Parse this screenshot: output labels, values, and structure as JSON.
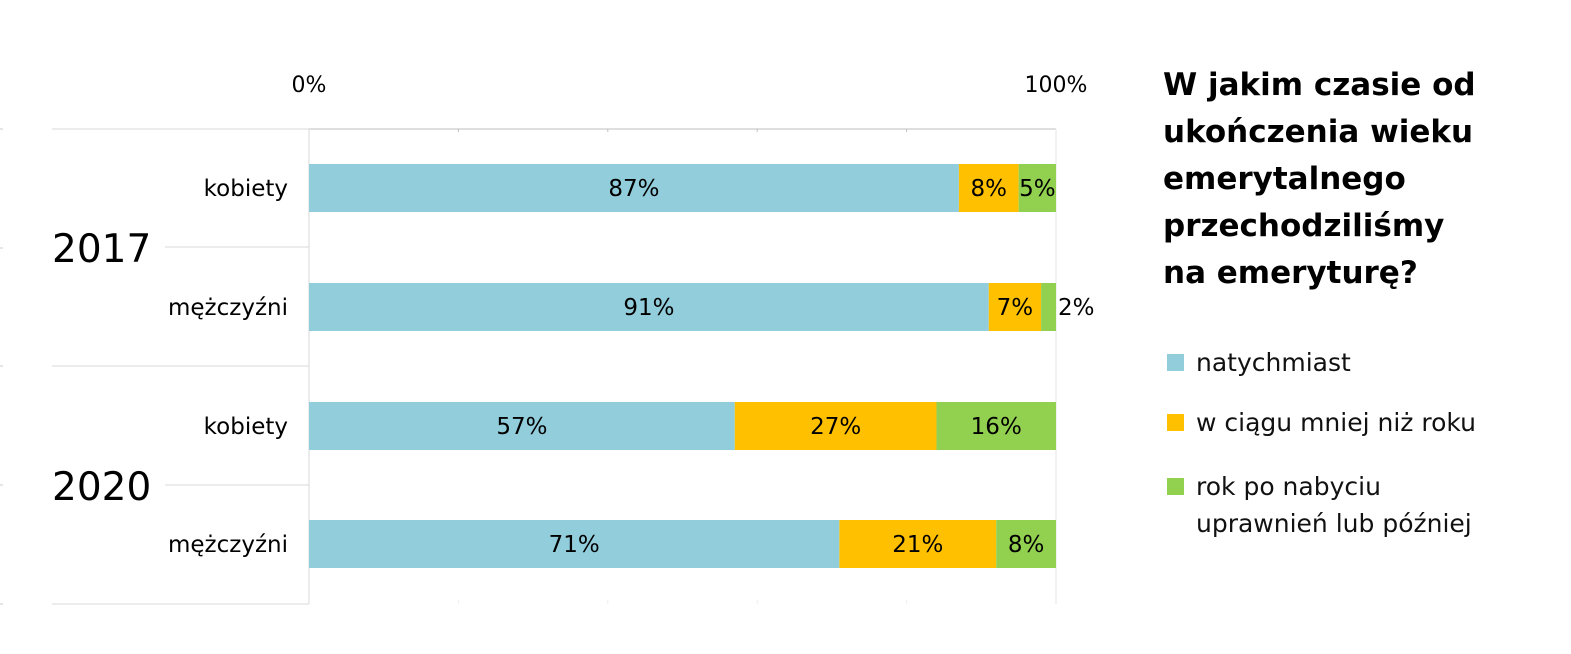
{
  "chart_data": {
    "type": "bar",
    "orientation": "horizontal",
    "stacked": true,
    "title_lines": [
      "W jakim czasie od",
      "ukończenia wieku",
      "emerytalnego",
      "przechodziliśmy",
      "na emeryturę?"
    ],
    "x_axis": {
      "range": [
        0,
        100
      ],
      "tick_labels": [
        "0%",
        "100%"
      ],
      "position": "top"
    },
    "groups": [
      {
        "label": "2017",
        "rows": [
          "kobiety",
          "mężczyźni"
        ]
      },
      {
        "label": "2020",
        "rows": [
          "kobiety",
          "mężczyźni"
        ]
      }
    ],
    "categories": [
      "2017 kobiety",
      "2017 mężczyźni",
      "2020 kobiety",
      "2020 mężczyźni"
    ],
    "row_labels": [
      "kobiety",
      "mężczyźni",
      "kobiety",
      "mężczyźni"
    ],
    "series": [
      {
        "name": "natychmiast",
        "color": "#92CDDC",
        "values": [
          87,
          91,
          57,
          71
        ],
        "labels": [
          "87%",
          "91%",
          "57%",
          "71%"
        ]
      },
      {
        "name": "w ciągu mniej niż roku",
        "color": "#FFC000",
        "values": [
          8,
          7,
          27,
          21
        ],
        "labels": [
          "8%",
          "7%",
          "27%",
          "21%"
        ]
      },
      {
        "name": "rok po nabyciu uprawnień lub później",
        "name_lines": [
          "rok po nabyciu",
          "uprawnień lub później"
        ],
        "color": "#92D050",
        "values": [
          5,
          2,
          16,
          8
        ],
        "labels": [
          "5%",
          "2%",
          "16%",
          "8%"
        ]
      }
    ],
    "legend_position": "right",
    "grid": true
  }
}
